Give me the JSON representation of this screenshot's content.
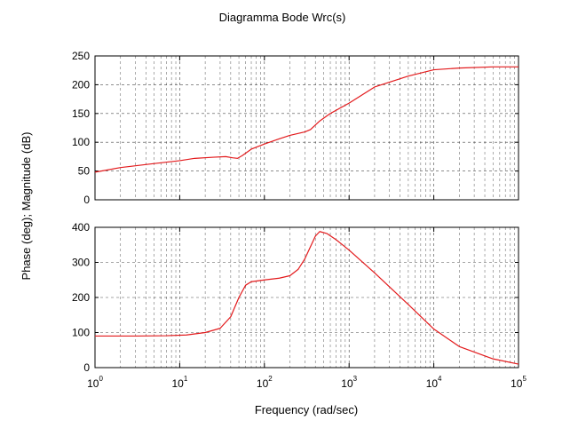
{
  "title": "Diagramma Bode Wrc(s)",
  "xlabel": "Frequency (rad/sec)",
  "ylabel": "Phase (deg); Magnitude (dB)",
  "colors": {
    "line": "#e31a1c",
    "grid": "#000000",
    "axes": "#000000",
    "background": "#ffffff"
  },
  "chart_data": [
    {
      "type": "line",
      "panel": "magnitude",
      "title": "Diagramma Bode Wrc(s)",
      "xlabel": "",
      "ylabel": "Phase (deg); Magnitude (dB)",
      "xscale": "log",
      "xlim": [
        1,
        100000
      ],
      "ylim": [
        0,
        250
      ],
      "yticks": [
        0,
        50,
        100,
        150,
        200,
        250
      ],
      "ytick_labels": [
        "0",
        "50",
        "100",
        "150",
        "200",
        "250"
      ],
      "grid": true,
      "series": [
        {
          "values": [
            [
              1,
              48
            ],
            [
              2,
              56
            ],
            [
              5,
              63
            ],
            [
              10,
              68
            ],
            [
              15,
              72
            ],
            [
              25,
              74
            ],
            [
              35,
              75
            ],
            [
              42,
              73
            ],
            [
              48,
              72
            ],
            [
              55,
              77
            ],
            [
              70,
              88
            ],
            [
              100,
              97
            ],
            [
              150,
              106
            ],
            [
              200,
              112
            ],
            [
              300,
              118
            ],
            [
              350,
              122
            ],
            [
              450,
              137
            ],
            [
              600,
              150
            ],
            [
              1000,
              168
            ],
            [
              2000,
              196
            ],
            [
              5000,
              215
            ],
            [
              10000,
              226
            ],
            [
              20000,
              229
            ],
            [
              50000,
              231
            ],
            [
              100000,
              231
            ]
          ]
        }
      ]
    },
    {
      "type": "line",
      "panel": "phase",
      "xlabel": "Frequency (rad/sec)",
      "ylabel": "",
      "xscale": "log",
      "xlim": [
        1,
        100000
      ],
      "ylim": [
        0,
        400
      ],
      "yticks": [
        0,
        100,
        200,
        300,
        400
      ],
      "ytick_labels": [
        "0",
        "100",
        "200",
        "300",
        "400"
      ],
      "xticks": [
        1,
        10,
        100,
        1000,
        10000,
        100000
      ],
      "xtick_labels": [
        {
          "base": "10",
          "exp": "0"
        },
        {
          "base": "10",
          "exp": "1"
        },
        {
          "base": "10",
          "exp": "2"
        },
        {
          "base": "10",
          "exp": "3"
        },
        {
          "base": "10",
          "exp": "4"
        },
        {
          "base": "10",
          "exp": "5"
        }
      ],
      "grid": true,
      "series": [
        {
          "values": [
            [
              1,
              90
            ],
            [
              3,
              90
            ],
            [
              7,
              91
            ],
            [
              12,
              93
            ],
            [
              20,
              100
            ],
            [
              30,
              112
            ],
            [
              40,
              145
            ],
            [
              50,
              200
            ],
            [
              60,
              235
            ],
            [
              70,
              245
            ],
            [
              100,
              250
            ],
            [
              150,
              255
            ],
            [
              200,
              262
            ],
            [
              250,
              280
            ],
            [
              300,
              310
            ],
            [
              400,
              375
            ],
            [
              450,
              388
            ],
            [
              550,
              382
            ],
            [
              700,
              365
            ],
            [
              1000,
              335
            ],
            [
              2000,
              270
            ],
            [
              5000,
              180
            ],
            [
              10000,
              110
            ],
            [
              20000,
              60
            ],
            [
              50000,
              25
            ],
            [
              100000,
              10
            ]
          ]
        }
      ]
    }
  ]
}
